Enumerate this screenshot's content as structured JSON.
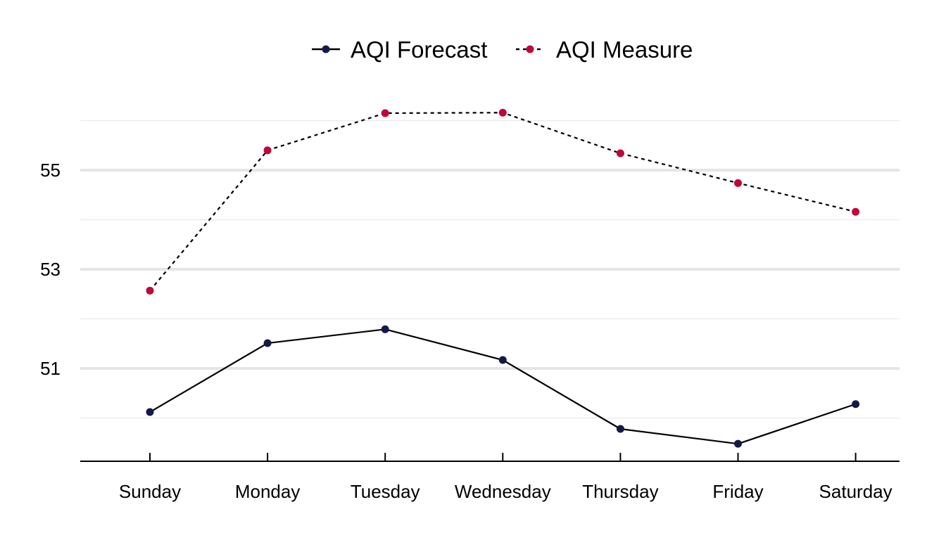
{
  "chart_data": {
    "type": "line",
    "title": "",
    "xlabel": "",
    "ylabel": "",
    "categories": [
      "Sunday",
      "Monday",
      "Tuesday",
      "Wednesday",
      "Thursday",
      "Friday",
      "Saturday"
    ],
    "series": [
      {
        "name": "AQI Forecast",
        "values": [
          50.12,
          51.51,
          51.79,
          51.17,
          49.78,
          49.48,
          50.28
        ],
        "line_color": "#000000",
        "marker_color": "#141a45",
        "line_style": "solid"
      },
      {
        "name": "AQI Measure",
        "values": [
          52.57,
          55.4,
          56.15,
          56.16,
          55.34,
          54.74,
          54.16
        ],
        "line_color": "#000000",
        "marker_color": "#c0063a",
        "line_style": "dotted"
      }
    ],
    "ylim": [
      49.13,
      57.0
    ],
    "y_major_ticks": [
      51,
      53,
      55
    ],
    "y_minor_gridlines": [
      50,
      52,
      54,
      56
    ],
    "grid": true,
    "legend_position": "top-center"
  }
}
